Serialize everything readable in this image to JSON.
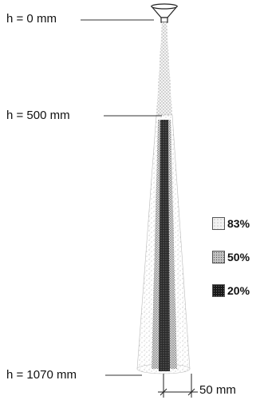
{
  "height_labels": [
    {
      "text": "h = 0 mm"
    },
    {
      "text": "h = 500 mm"
    },
    {
      "text": "h = 1070 mm"
    }
  ],
  "legend": [
    {
      "label": "83%",
      "color": "#e2e2e2"
    },
    {
      "label": "50%",
      "color": "#a5a5a5"
    },
    {
      "label": "20%",
      "color": "#1a1a1a"
    }
  ],
  "scale_bar": {
    "label": "50 mm"
  }
}
